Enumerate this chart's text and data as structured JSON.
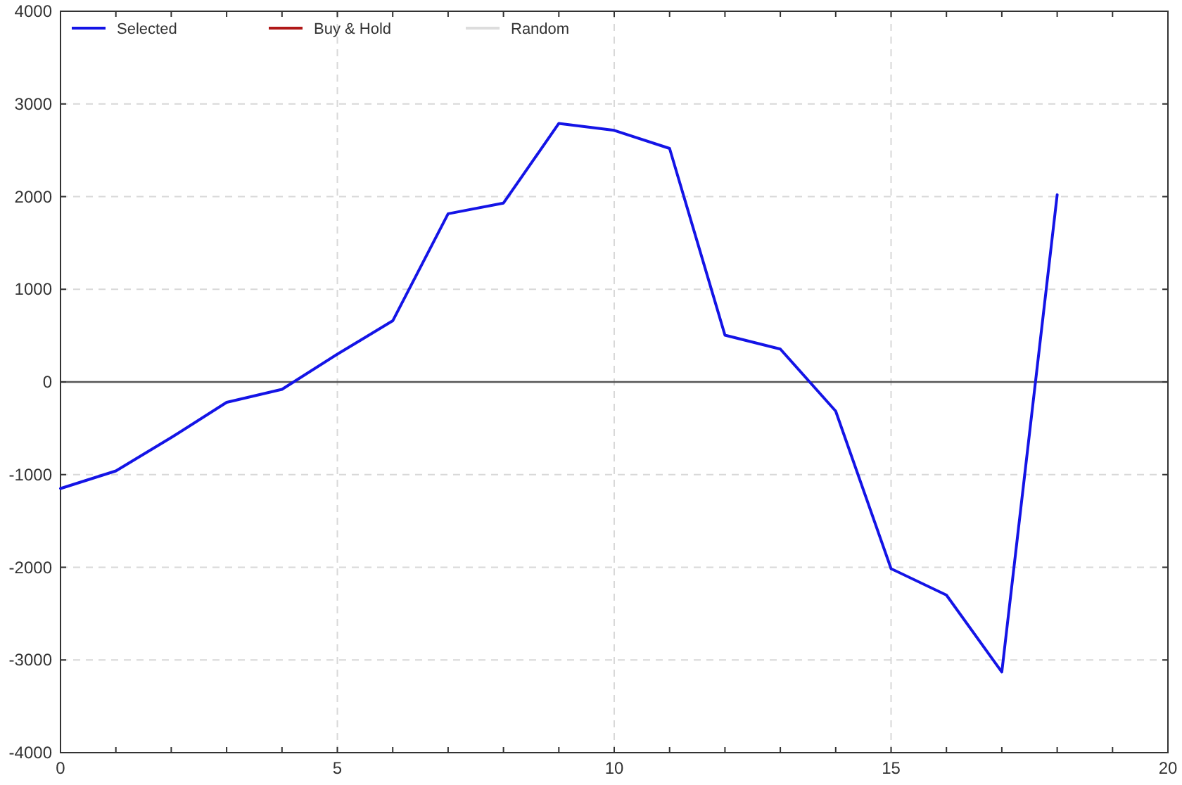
{
  "chart_data": {
    "type": "line",
    "x": [
      0,
      1,
      2,
      3,
      4,
      5,
      6,
      7,
      8,
      9,
      10,
      11,
      12,
      13,
      14,
      15,
      16,
      17,
      18
    ],
    "series": [
      {
        "name": "Selected",
        "color": "#1414e6",
        "values": [
          -1150,
          -960,
          -600,
          -220,
          -80,
          300,
          660,
          1815,
          1930,
          2790,
          2715,
          2520,
          505,
          355,
          -315,
          -2015,
          -2300,
          -3130,
          2020
        ]
      },
      {
        "name": "Buy & Hold",
        "color": "#b01818",
        "values": [
          null,
          null,
          null,
          null,
          null,
          null,
          null,
          null,
          null,
          null,
          null,
          null,
          null,
          null,
          null,
          null,
          null,
          null,
          null
        ]
      },
      {
        "name": "Random",
        "color": "#dddddd",
        "values": [
          null,
          null,
          null,
          null,
          null,
          null,
          null,
          null,
          null,
          null,
          null,
          null,
          null,
          null,
          null,
          null,
          null,
          null,
          null
        ]
      }
    ],
    "xlim": [
      0,
      20
    ],
    "ylim": [
      -4000,
      4000
    ],
    "xticks": [
      0,
      {
        "value": 1,
        "label": null
      },
      {
        "value": 2,
        "label": null
      },
      {
        "value": 3,
        "label": null
      },
      {
        "value": 4,
        "label": null
      },
      5,
      {
        "value": 6,
        "label": null
      },
      {
        "value": 7,
        "label": null
      },
      {
        "value": 8,
        "label": null
      },
      {
        "value": 9,
        "label": null
      },
      10,
      {
        "value": 11,
        "label": null
      },
      {
        "value": 12,
        "label": null
      },
      {
        "value": 13,
        "label": null
      },
      {
        "value": 14,
        "label": null
      },
      15,
      {
        "value": 16,
        "label": null
      },
      {
        "value": 17,
        "label": null
      },
      {
        "value": 18,
        "label": null
      },
      {
        "value": 19,
        "label": null
      },
      20
    ],
    "yticks": [
      -4000,
      -3000,
      -2000,
      -1000,
      0,
      1000,
      2000,
      3000,
      4000
    ],
    "ref_lines": [
      {
        "axis": "y",
        "value": 0,
        "color": "#555555"
      }
    ],
    "grid": true,
    "legend": "top left",
    "marker": "none",
    "line_style": "solid"
  }
}
